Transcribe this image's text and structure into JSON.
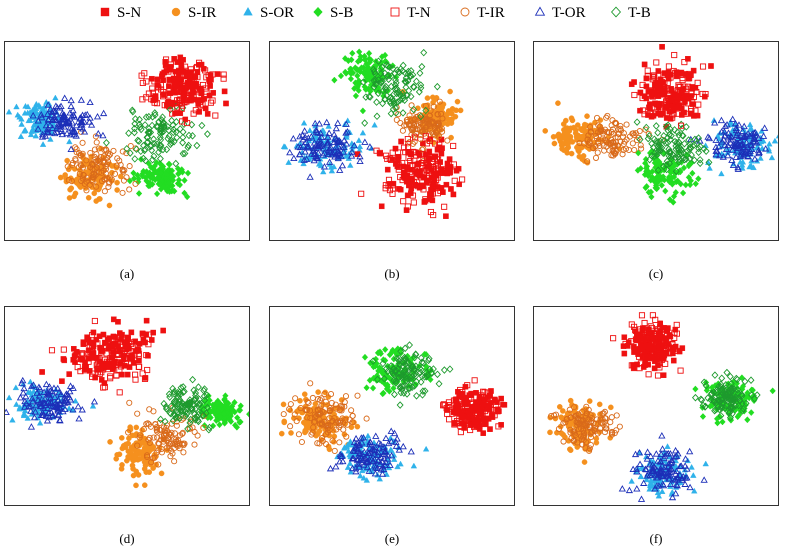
{
  "chart_data": {
    "type": "scatter",
    "description_axes": "t-SNE embedding, unlabeled axes",
    "legend": [
      {
        "key": "SN",
        "label": "S-N",
        "color": "#ee1111",
        "marker": "square",
        "filled": true
      },
      {
        "key": "SIR",
        "label": "S-IR",
        "color": "#f5901e",
        "marker": "circle",
        "filled": true
      },
      {
        "key": "SOR",
        "label": "S-OR",
        "color": "#2fb2ea",
        "marker": "triangle",
        "filled": true
      },
      {
        "key": "SB",
        "label": "S-B",
        "color": "#22dd22",
        "marker": "diamond",
        "filled": true
      },
      {
        "key": "TN",
        "label": "T-N",
        "color": "#ee1111",
        "marker": "square",
        "filled": false
      },
      {
        "key": "TIR",
        "label": "T-IR",
        "color": "#d96a1a",
        "marker": "circle",
        "filled": false
      },
      {
        "key": "TOR",
        "label": "T-OR",
        "color": "#1c2fb8",
        "marker": "triangle",
        "filled": false
      },
      {
        "key": "TB",
        "label": "T-B",
        "color": "#1e9a2e",
        "marker": "diamond",
        "filled": false
      }
    ],
    "xlim": [
      0,
      100
    ],
    "ylim": [
      0,
      100
    ],
    "panels": [
      {
        "caption": "(a)",
        "clusters": {
          "SN": [
            72,
            22,
            14,
            13
          ],
          "TN": [
            72,
            23,
            14,
            14
          ],
          "SIR": [
            34,
            67,
            10,
            11
          ],
          "TIR": [
            38,
            63,
            12,
            12
          ],
          "SOR": [
            14,
            39,
            9,
            9
          ],
          "TOR": [
            24,
            40,
            13,
            10
          ],
          "SB": [
            64,
            68,
            10,
            8
          ],
          "TB": [
            62,
            46,
            15,
            12
          ]
        }
      },
      {
        "caption": "(b)",
        "clusters": {
          "SN": [
            62,
            66,
            16,
            16
          ],
          "TN": [
            60,
            64,
            16,
            17
          ],
          "SIR": [
            67,
            37,
            8,
            9
          ],
          "TIR": [
            62,
            42,
            10,
            10
          ],
          "SOR": [
            22,
            52,
            14,
            10
          ],
          "TOR": [
            22,
            52,
            14,
            10
          ],
          "SB": [
            40,
            16,
            10,
            10
          ],
          "TB": [
            51,
            22,
            12,
            14
          ]
        }
      },
      {
        "caption": "(c)",
        "clusters": {
          "SN": [
            55,
            27,
            12,
            15
          ],
          "TN": [
            57,
            26,
            12,
            14
          ],
          "SIR": [
            18,
            48,
            11,
            10
          ],
          "TIR": [
            32,
            48,
            13,
            10
          ],
          "SOR": [
            85,
            52,
            11,
            10
          ],
          "TOR": [
            83,
            51,
            13,
            11
          ],
          "SB": [
            53,
            66,
            11,
            11
          ],
          "TB": [
            57,
            53,
            12,
            11
          ]
        }
      },
      {
        "caption": "(d)",
        "clusters": {
          "SN": [
            43,
            22,
            18,
            13
          ],
          "TN": [
            43,
            25,
            18,
            14
          ],
          "SIR": [
            55,
            73,
            9,
            11
          ],
          "TIR": [
            66,
            65,
            14,
            12
          ],
          "SOR": [
            14,
            48,
            13,
            9
          ],
          "TOR": [
            17,
            48,
            12,
            9
          ],
          "SB": [
            88,
            52,
            9,
            7
          ],
          "TB": [
            73,
            50,
            10,
            11
          ]
        }
      },
      {
        "caption": "(e)",
        "clusters": {
          "SN": [
            83,
            52,
            9,
            10
          ],
          "TN": [
            82,
            51,
            10,
            10
          ],
          "SIR": [
            19,
            56,
            12,
            12
          ],
          "TIR": [
            21,
            56,
            13,
            12
          ],
          "SOR": [
            40,
            74,
            12,
            11
          ],
          "TOR": [
            41,
            74,
            12,
            10
          ],
          "SB": [
            52,
            32,
            12,
            11
          ],
          "TB": [
            56,
            32,
            11,
            11
          ]
        }
      },
      {
        "caption": "(f)",
        "clusters": {
          "SN": [
            47,
            20,
            10,
            11
          ],
          "TN": [
            48,
            19,
            10,
            11
          ],
          "SIR": [
            19,
            60,
            11,
            12
          ],
          "TIR": [
            21,
            60,
            11,
            12
          ],
          "SOR": [
            52,
            83,
            11,
            10
          ],
          "TOR": [
            53,
            82,
            11,
            10
          ],
          "SB": [
            80,
            46,
            11,
            9
          ],
          "TB": [
            78,
            45,
            10,
            9
          ]
        }
      }
    ]
  }
}
